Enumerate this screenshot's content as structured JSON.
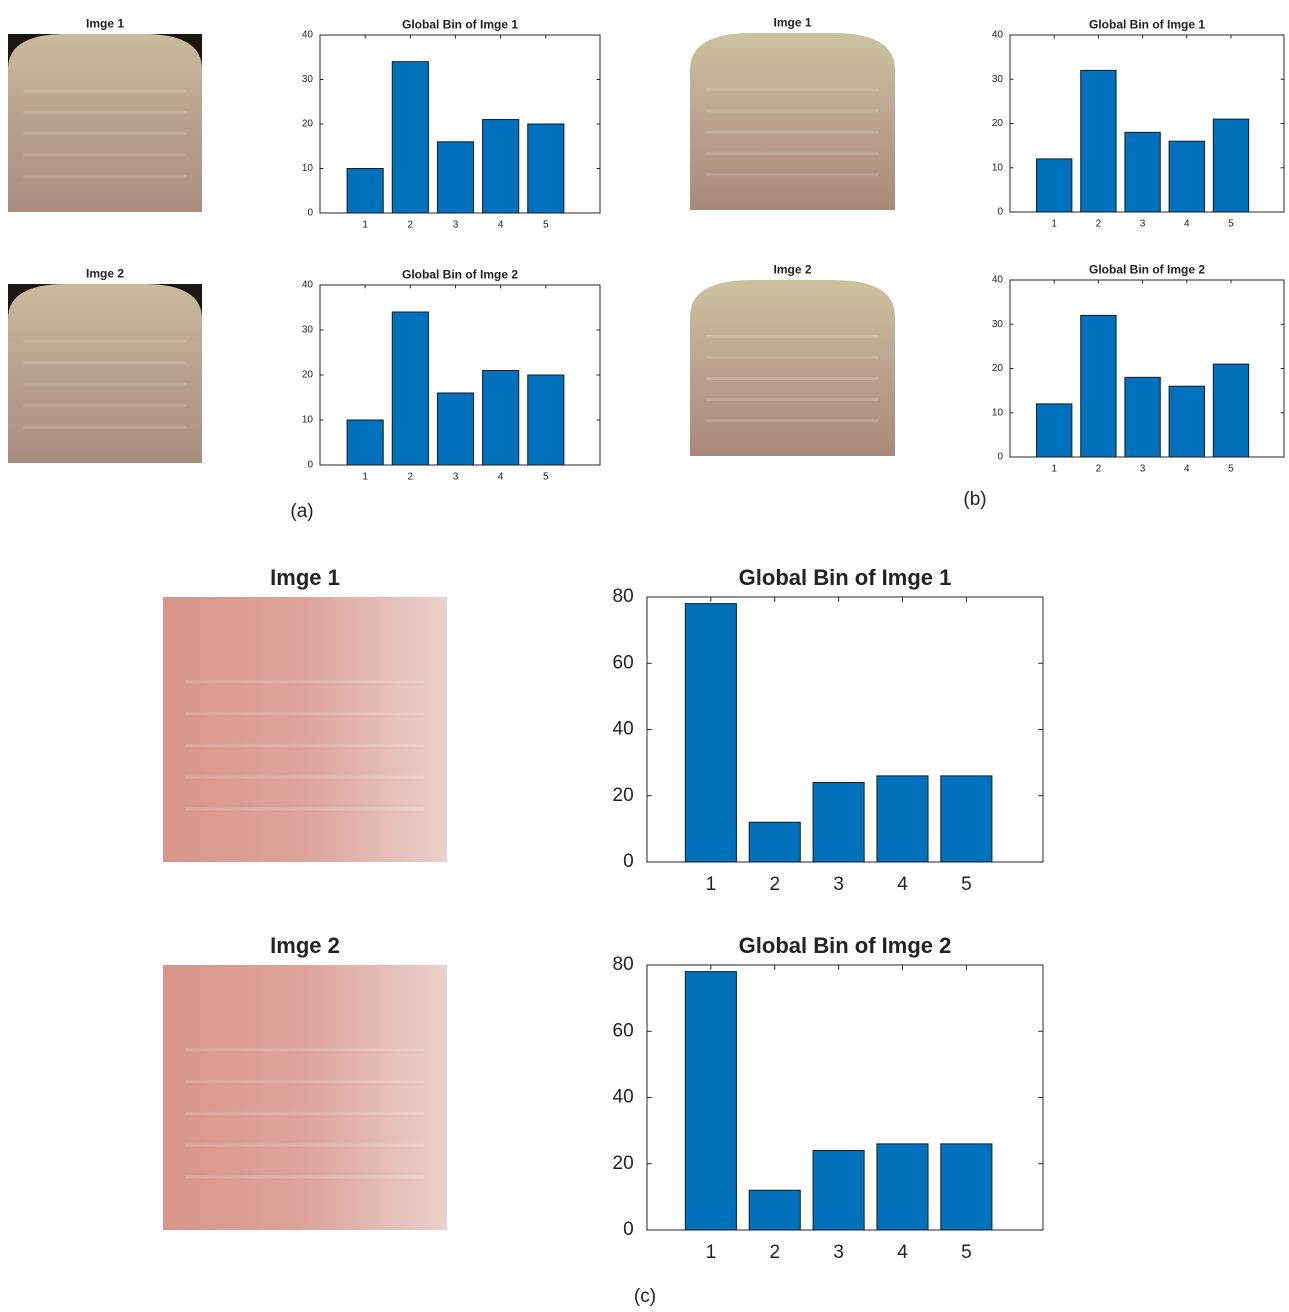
{
  "panels": [
    {
      "label": "(a)",
      "image_titles": [
        "Imge 1",
        "Imge 2"
      ]
    },
    {
      "label": "(b)",
      "image_titles": [
        "Imge 1",
        "Imge 2"
      ]
    },
    {
      "label": "(c)",
      "image_titles": [
        "Imge 1",
        "Imge 2"
      ]
    }
  ],
  "chart_data": [
    {
      "type": "bar",
      "title": "Global Bin of Imge 1",
      "categories": [
        1,
        2,
        3,
        4,
        5
      ],
      "values": [
        10,
        34,
        16,
        21,
        20
      ],
      "color": "#0072bd",
      "ylim": [
        0,
        40
      ],
      "yticks": [
        0,
        10,
        20,
        30,
        40
      ]
    },
    {
      "type": "bar",
      "title": "Global Bin of Imge 2",
      "categories": [
        1,
        2,
        3,
        4,
        5
      ],
      "values": [
        10,
        34,
        16,
        21,
        20
      ],
      "color": "#0072bd",
      "ylim": [
        0,
        40
      ],
      "yticks": [
        0,
        10,
        20,
        30,
        40
      ]
    },
    {
      "type": "bar",
      "title": "Global Bin of Imge 1",
      "categories": [
        1,
        2,
        3,
        4,
        5
      ],
      "values": [
        12,
        32,
        18,
        16,
        21
      ],
      "color": "#0072bd",
      "ylim": [
        0,
        40
      ],
      "yticks": [
        0,
        10,
        20,
        30,
        40
      ]
    },
    {
      "type": "bar",
      "title": "Global Bin of Imge 2",
      "categories": [
        1,
        2,
        3,
        4,
        5
      ],
      "values": [
        12,
        32,
        18,
        16,
        21
      ],
      "color": "#0072bd",
      "ylim": [
        0,
        40
      ],
      "yticks": [
        0,
        10,
        20,
        30,
        40
      ]
    },
    {
      "type": "bar",
      "title": "Global Bin of Imge 1",
      "categories": [
        1,
        2,
        3,
        4,
        5
      ],
      "values": [
        78,
        12,
        24,
        26,
        26
      ],
      "color": "#0072bd",
      "ylim": [
        0,
        80
      ],
      "yticks": [
        0,
        20,
        40,
        60,
        80
      ]
    },
    {
      "type": "bar",
      "title": "Global Bin of Imge 2",
      "categories": [
        1,
        2,
        3,
        4,
        5
      ],
      "values": [
        78,
        12,
        24,
        26,
        26
      ],
      "color": "#0072bd",
      "ylim": [
        0,
        80
      ],
      "yticks": [
        0,
        20,
        40,
        60,
        80
      ]
    }
  ]
}
